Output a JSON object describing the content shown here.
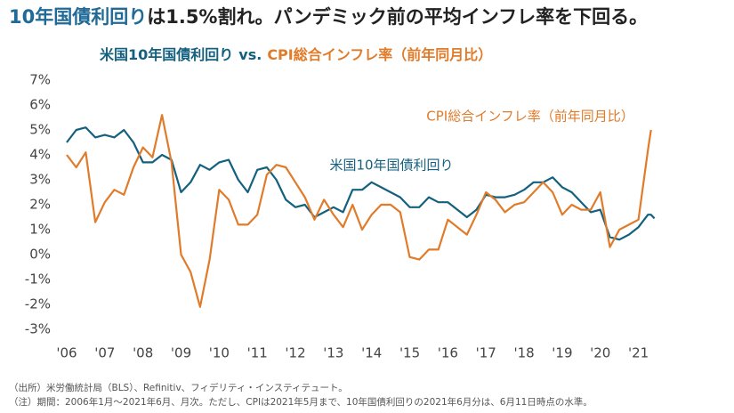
{
  "chart_data": {
    "type": "line",
    "title": [
      "10年国債利回り",
      "は1.5%割れ。パンデミック前の平均インフレ率を下回る。"
    ],
    "title_colors": [
      "#1f6a96",
      "#222222"
    ],
    "subtitle": [
      "米国10年国債利回り",
      "vs.",
      "CPI総合インフレ率（前年同月比）"
    ],
    "notes": [
      "（出所）米労働統計局（BLS）、Refinitiv、フィデリティ・インスティテュート。",
      "（注）期間：2006年1月～2021年6月、月次。ただし、CPIは2021年5月まで、10年国債利回りの2021年6月分は、6月11日時点の水準。"
    ],
    "x": [
      2006,
      2006.25,
      2006.5,
      2006.75,
      2007,
      2007.25,
      2007.5,
      2007.75,
      2008,
      2008.25,
      2008.5,
      2008.75,
      2009,
      2009.25,
      2009.5,
      2009.75,
      2010,
      2010.25,
      2010.5,
      2010.75,
      2011,
      2011.25,
      2011.5,
      2011.75,
      2012,
      2012.25,
      2012.5,
      2012.75,
      2013,
      2013.25,
      2013.5,
      2013.75,
      2014,
      2014.25,
      2014.5,
      2014.75,
      2015,
      2015.25,
      2015.5,
      2015.75,
      2016,
      2016.25,
      2016.5,
      2016.75,
      2017,
      2017.25,
      2017.5,
      2017.75,
      2018,
      2018.25,
      2018.5,
      2018.75,
      2019,
      2019.25,
      2019.5,
      2019.75,
      2020,
      2020.25,
      2020.5,
      2020.75,
      2021,
      2021.25,
      2021.33,
      2021.42
    ],
    "series": [
      {
        "name": "米国10年国債利回り",
        "color": "#14607f",
        "label_pos": "middle",
        "values": [
          4.5,
          5.0,
          5.1,
          4.7,
          4.8,
          4.7,
          5.0,
          4.5,
          3.7,
          3.7,
          4.0,
          3.8,
          2.5,
          2.9,
          3.6,
          3.4,
          3.7,
          3.8,
          3.0,
          2.5,
          3.4,
          3.5,
          3.0,
          2.2,
          1.9,
          2.0,
          1.5,
          1.7,
          1.9,
          1.7,
          2.6,
          2.6,
          2.9,
          2.7,
          2.5,
          2.3,
          1.9,
          1.9,
          2.3,
          2.1,
          2.1,
          1.8,
          1.5,
          1.8,
          2.4,
          2.3,
          2.3,
          2.4,
          2.6,
          2.9,
          2.9,
          3.1,
          2.7,
          2.5,
          2.1,
          1.7,
          1.8,
          0.7,
          0.6,
          0.8,
          1.1,
          1.6,
          1.6,
          1.45
        ]
      },
      {
        "name": "CPI総合インフレ率（前年同月比）",
        "color": "#e07b2a",
        "label_pos": "top-right",
        "values": [
          4.0,
          3.5,
          4.1,
          1.3,
          2.1,
          2.6,
          2.4,
          3.5,
          4.3,
          3.9,
          5.6,
          3.7,
          0.0,
          -0.7,
          -2.1,
          -0.2,
          2.6,
          2.2,
          1.2,
          1.2,
          1.6,
          3.2,
          3.6,
          3.5,
          2.9,
          2.3,
          1.4,
          2.2,
          1.6,
          1.1,
          2.0,
          1.0,
          1.6,
          2.0,
          2.0,
          1.7,
          -0.1,
          -0.2,
          0.2,
          0.2,
          1.4,
          1.1,
          0.8,
          1.6,
          2.5,
          2.2,
          1.7,
          2.0,
          2.1,
          2.5,
          2.9,
          2.5,
          1.6,
          2.0,
          1.8,
          1.8,
          2.5,
          0.3,
          1.0,
          1.2,
          1.4,
          4.2,
          5.0,
          null
        ]
      }
    ],
    "xlim": [
      2006,
      2021.5
    ],
    "xticks": [
      {
        "value": 2006,
        "label": "'06"
      },
      {
        "value": 2007,
        "label": "'07"
      },
      {
        "value": 2008,
        "label": "'08"
      },
      {
        "value": 2009,
        "label": "'09"
      },
      {
        "value": 2010,
        "label": "'10"
      },
      {
        "value": 2011,
        "label": "'11"
      },
      {
        "value": 2012,
        "label": "'12"
      },
      {
        "value": 2013,
        "label": "'13"
      },
      {
        "value": 2014,
        "label": "'14"
      },
      {
        "value": 2015,
        "label": "'15"
      },
      {
        "value": 2016,
        "label": "'16"
      },
      {
        "value": 2017,
        "label": "'17"
      },
      {
        "value": 2018,
        "label": "'18"
      },
      {
        "value": 2019,
        "label": "'19"
      },
      {
        "value": 2020,
        "label": "'20"
      },
      {
        "value": 2021,
        "label": "'21"
      }
    ],
    "ylim": [
      -3,
      7
    ],
    "yticks": [
      {
        "value": 7,
        "label": "7%"
      },
      {
        "value": 6,
        "label": "6%"
      },
      {
        "value": 5,
        "label": "5%"
      },
      {
        "value": 4,
        "label": "4%"
      },
      {
        "value": 3,
        "label": "3%"
      },
      {
        "value": 2,
        "label": "2%"
      },
      {
        "value": 1,
        "label": "1%"
      },
      {
        "value": 0,
        "label": "0%"
      },
      {
        "value": -1,
        "label": "-1%"
      },
      {
        "value": -2,
        "label": "-2%"
      },
      {
        "value": -3,
        "label": "-3%"
      }
    ],
    "grid": false
  }
}
